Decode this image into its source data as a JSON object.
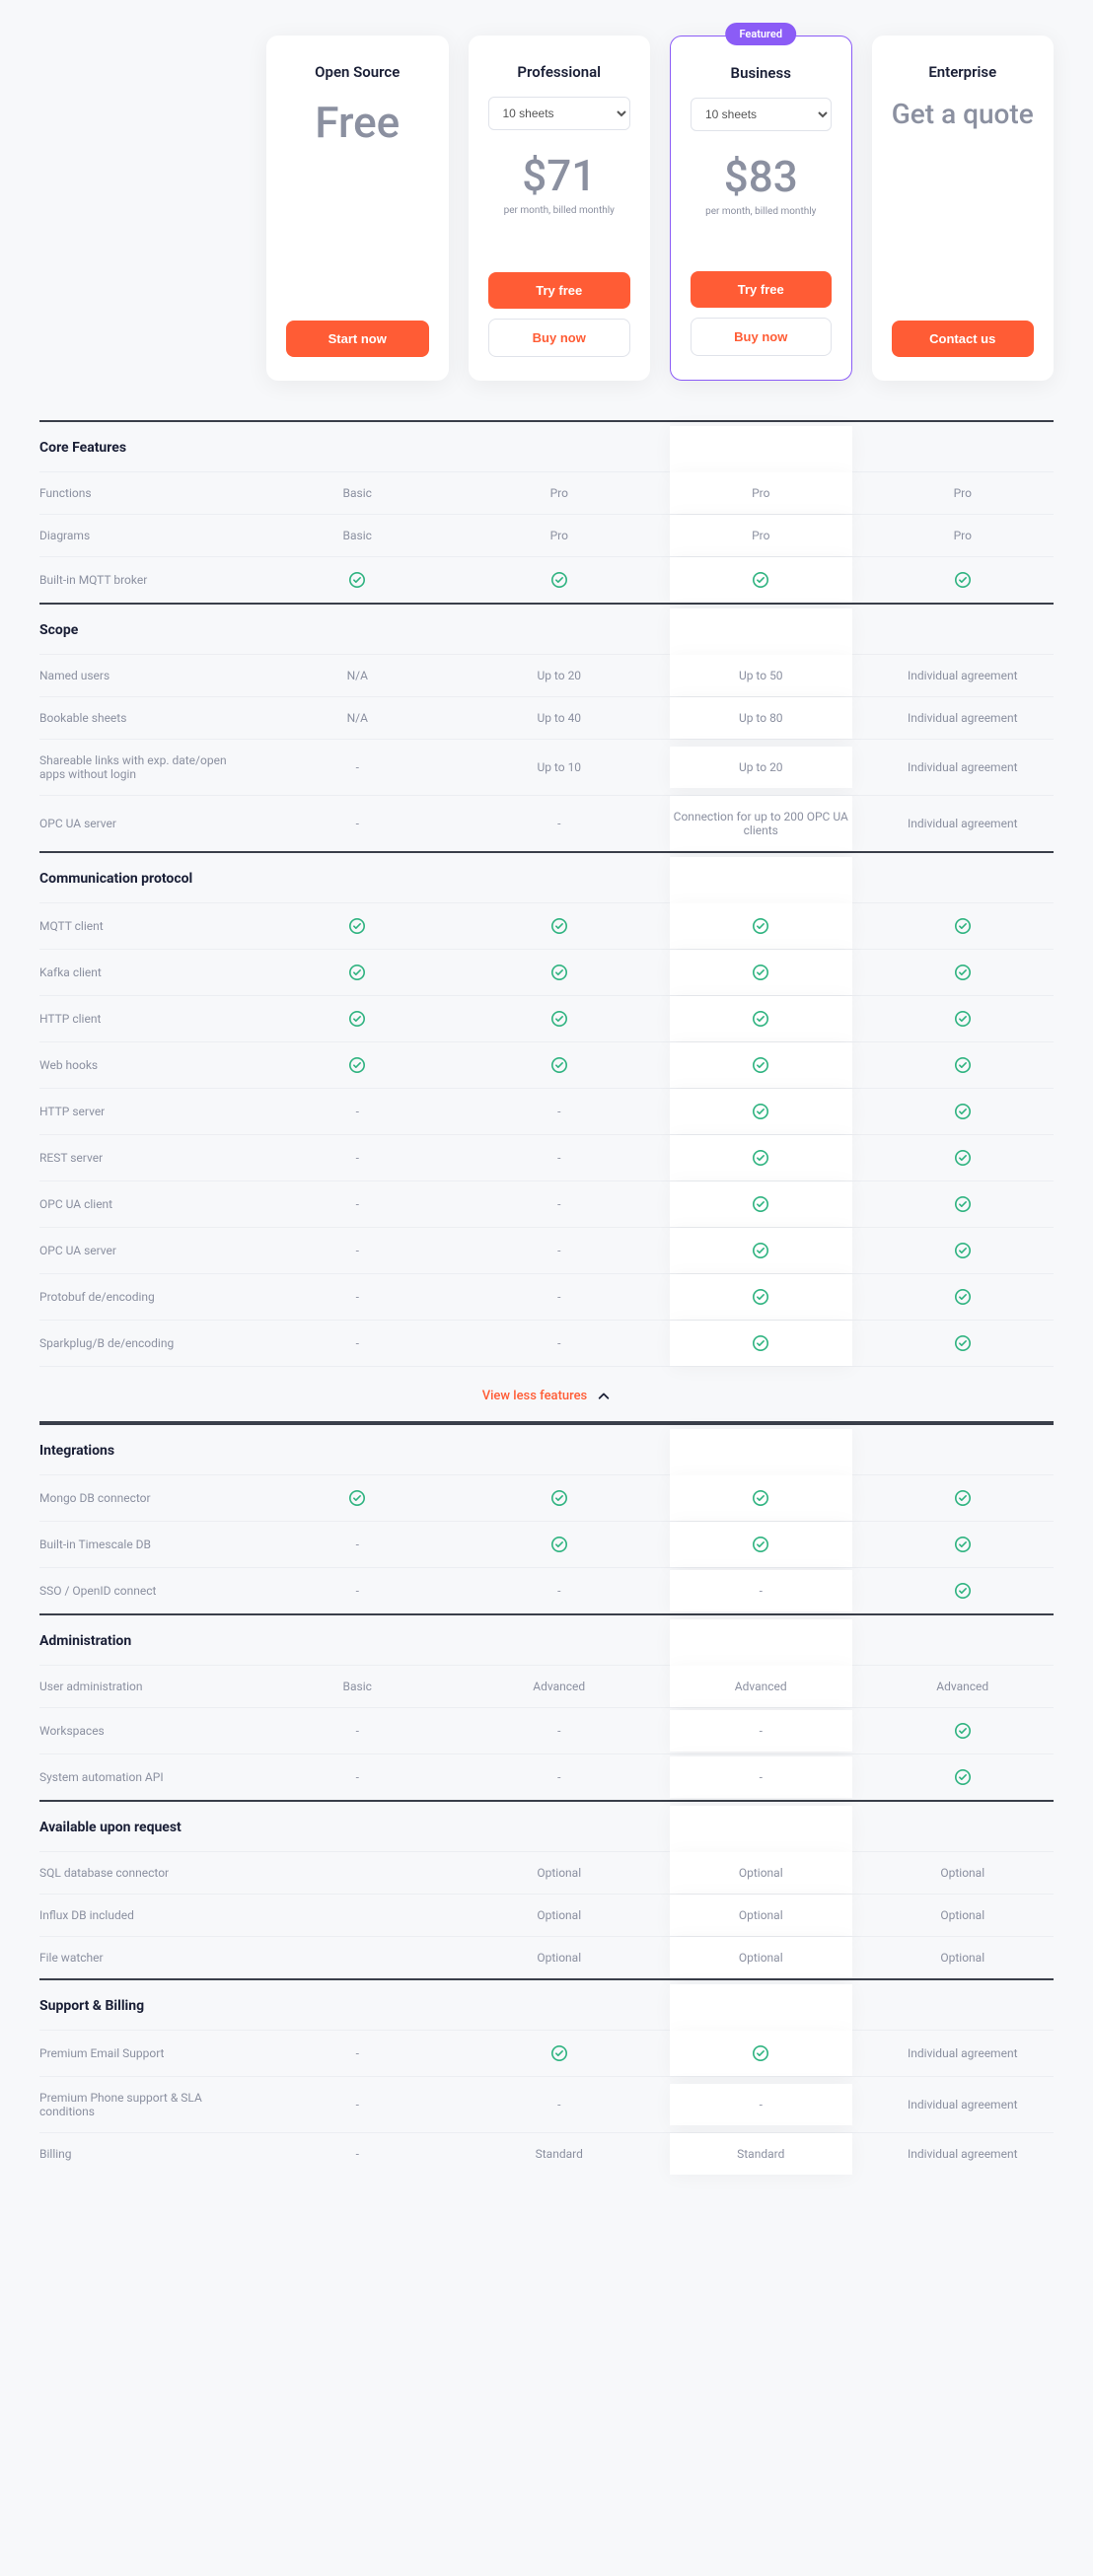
{
  "featured_label": "Featured",
  "plans": [
    {
      "name": "Open Source",
      "has_select": false,
      "price": "Free",
      "sub": "",
      "buttons": [
        {
          "label": "Start now",
          "style": "primary"
        }
      ]
    },
    {
      "name": "Professional",
      "has_select": true,
      "select_value": "10 sheets",
      "price": "$71",
      "sub": "per month, billed monthly",
      "buttons": [
        {
          "label": "Try free",
          "style": "primary"
        },
        {
          "label": "Buy now",
          "style": "outline-gray"
        }
      ]
    },
    {
      "name": "Business",
      "has_select": true,
      "select_value": "10 sheets",
      "price": "$83",
      "sub": "per month, billed monthly",
      "featured": true,
      "buttons": [
        {
          "label": "Try free",
          "style": "primary"
        },
        {
          "label": "Buy now",
          "style": "outline-gray"
        }
      ]
    },
    {
      "name": "Enterprise",
      "has_select": false,
      "quote": "Get a quote",
      "buttons": [
        {
          "label": "Contact us",
          "style": "primary"
        }
      ]
    }
  ],
  "toggle_label": "View less features",
  "sections": [
    {
      "title": "Core Features",
      "rows": [
        {
          "label": "Functions",
          "cells": [
            "Basic",
            "Pro",
            "Pro",
            "Pro"
          ]
        },
        {
          "label": "Diagrams",
          "cells": [
            "Basic",
            "Pro",
            "Pro",
            "Pro"
          ]
        },
        {
          "label": "Built-in MQTT broker",
          "cells": [
            "check",
            "check",
            "check",
            "check"
          ]
        }
      ]
    },
    {
      "title": "Scope",
      "rows": [
        {
          "label": "Named users",
          "cells": [
            "N/A",
            "Up to 20",
            "Up to 50",
            "Individual agreement"
          ]
        },
        {
          "label": "Bookable sheets",
          "cells": [
            "N/A",
            "Up to 40",
            "Up to 80",
            "Individual agreement"
          ]
        },
        {
          "label": "Shareable links with exp. date/open apps without login",
          "cells": [
            "-",
            "Up to 10",
            "Up to 20",
            "Individual agreement"
          ]
        },
        {
          "label": "OPC UA server",
          "cells": [
            "-",
            "-",
            "Connection for up to 200 OPC UA clients",
            "Individual agreement"
          ]
        }
      ]
    },
    {
      "title": "Communication protocol",
      "rows": [
        {
          "label": "MQTT client",
          "cells": [
            "check",
            "check",
            "check",
            "check"
          ]
        },
        {
          "label": "Kafka client",
          "cells": [
            "check",
            "check",
            "check",
            "check"
          ]
        },
        {
          "label": "HTTP client",
          "cells": [
            "check",
            "check",
            "check",
            "check"
          ]
        },
        {
          "label": "Web hooks",
          "cells": [
            "check",
            "check",
            "check",
            "check"
          ]
        },
        {
          "label": "HTTP server",
          "cells": [
            "-",
            "-",
            "check",
            "check"
          ]
        },
        {
          "label": "REST server",
          "cells": [
            "-",
            "-",
            "check",
            "check"
          ]
        },
        {
          "label": "OPC UA client",
          "cells": [
            "-",
            "-",
            "check",
            "check"
          ]
        },
        {
          "label": "OPC UA server",
          "cells": [
            "-",
            "-",
            "check",
            "check"
          ]
        },
        {
          "label": "Protobuf de/encoding",
          "cells": [
            "-",
            "-",
            "check",
            "check"
          ]
        },
        {
          "label": "Sparkplug/B de/encoding",
          "cells": [
            "-",
            "-",
            "check",
            "check"
          ]
        }
      ]
    },
    {
      "title": "Integrations",
      "toggle_before": true,
      "rows": [
        {
          "label": "Mongo DB connector",
          "cells": [
            "check",
            "check",
            "check",
            "check"
          ]
        },
        {
          "label": "Built-in Timescale DB",
          "cells": [
            "-",
            "check",
            "check",
            "check"
          ]
        },
        {
          "label": "SSO / OpenID connect",
          "cells": [
            "-",
            "-",
            "-",
            "check"
          ]
        }
      ]
    },
    {
      "title": "Administration",
      "rows": [
        {
          "label": "User administration",
          "cells": [
            "Basic",
            "Advanced",
            "Advanced",
            "Advanced"
          ]
        },
        {
          "label": "Workspaces",
          "cells": [
            "-",
            "-",
            "-",
            "check"
          ]
        },
        {
          "label": "System automation API",
          "cells": [
            "-",
            "-",
            "-",
            "check"
          ]
        }
      ]
    },
    {
      "title": "Available upon request",
      "rows": [
        {
          "label": "SQL database connector",
          "cells": [
            "",
            "Optional",
            "Optional",
            "Optional"
          ]
        },
        {
          "label": "Influx DB included",
          "cells": [
            "",
            "Optional",
            "Optional",
            "Optional"
          ]
        },
        {
          "label": "File watcher",
          "cells": [
            "",
            "Optional",
            "Optional",
            "Optional"
          ]
        }
      ]
    },
    {
      "title": "Support & Billing",
      "rows": [
        {
          "label": "Premium Email Support",
          "cells": [
            "-",
            "check",
            "check",
            "Individual agreement"
          ]
        },
        {
          "label": "Premium Phone support & SLA conditions",
          "cells": [
            "-",
            "-",
            "-",
            "Individual agreement"
          ]
        },
        {
          "label": "Billing",
          "cells": [
            "-",
            "Standard",
            "Standard",
            "Individual agreement"
          ]
        }
      ]
    }
  ],
  "colors": {
    "accent": "#ff5c35",
    "featured": "#8b5cf6",
    "check": "#2fb380",
    "text_muted": "#8b90a0"
  }
}
